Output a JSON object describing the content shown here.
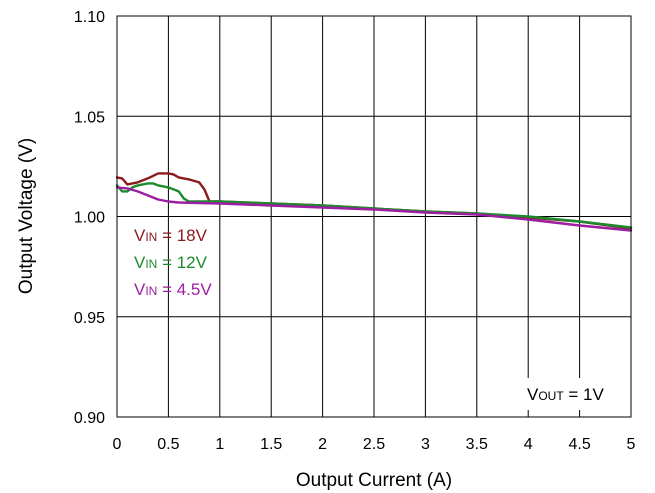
{
  "chart_data": {
    "type": "line",
    "title": "",
    "xlabel": "Output Current (A)",
    "ylabel": "Output Voltage (V)",
    "xlim": [
      0,
      5
    ],
    "ylim": [
      0.9,
      1.1
    ],
    "xticks": [
      "0",
      "0.5",
      "1",
      "1.5",
      "2",
      "2.5",
      "3",
      "3.5",
      "4",
      "4.5",
      "5"
    ],
    "yticks": [
      "0.90",
      "0.95",
      "1.00",
      "1.05",
      "1.10"
    ],
    "grid": true,
    "legend_position": "left",
    "annotation": {
      "main": "V",
      "sub": "OUT",
      "rest": " = 1V"
    },
    "series": [
      {
        "name": "VIN = 18V",
        "legend_main": "V",
        "legend_sub": "IN",
        "legend_rest": " = 18V",
        "color": "#8B1A1A",
        "x": [
          0,
          0.05,
          0.1,
          0.2,
          0.3,
          0.4,
          0.45,
          0.5,
          0.55,
          0.6,
          0.7,
          0.8,
          0.85,
          0.9,
          1.0,
          1.5,
          2.0,
          2.5,
          3.0,
          3.5,
          4.0,
          4.5,
          5.0
        ],
        "y": [
          1.0195,
          1.019,
          1.016,
          1.017,
          1.019,
          1.0215,
          1.0215,
          1.0215,
          1.021,
          1.0195,
          1.0185,
          1.017,
          1.0135,
          1.0075,
          1.0075,
          1.0065,
          1.0055,
          1.004,
          1.0025,
          1.0015,
          0.9995,
          0.9975,
          0.994
        ]
      },
      {
        "name": "VIN = 12V",
        "legend_main": "V",
        "legend_sub": "IN",
        "legend_rest": " = 12V",
        "color": "#1E8A2E",
        "x": [
          0,
          0.05,
          0.1,
          0.15,
          0.2,
          0.3,
          0.35,
          0.4,
          0.5,
          0.6,
          0.65,
          0.7,
          1.0,
          1.5,
          2.0,
          2.5,
          3.0,
          3.5,
          4.0,
          4.5,
          5.0
        ],
        "y": [
          1.0155,
          1.0125,
          1.0125,
          1.0145,
          1.0155,
          1.0165,
          1.0165,
          1.0155,
          1.0145,
          1.0125,
          1.009,
          1.0075,
          1.0075,
          1.0065,
          1.0055,
          1.004,
          1.0025,
          1.0015,
          1.0,
          0.9975,
          0.9945
        ]
      },
      {
        "name": "VIN = 4.5V",
        "legend_main": "V",
        "legend_sub": "IN",
        "legend_rest": " = 4.5V",
        "color": "#9B1FA0",
        "x": [
          0,
          0.1,
          0.2,
          0.3,
          0.4,
          0.5,
          0.6,
          1.0,
          1.5,
          2.0,
          2.5,
          3.0,
          3.5,
          4.0,
          4.5,
          5.0
        ],
        "y": [
          1.0145,
          1.014,
          1.0125,
          1.0105,
          1.0085,
          1.0075,
          1.007,
          1.0065,
          1.0055,
          1.0045,
          1.0035,
          1.002,
          1.001,
          0.9985,
          0.9955,
          0.993
        ]
      }
    ]
  }
}
